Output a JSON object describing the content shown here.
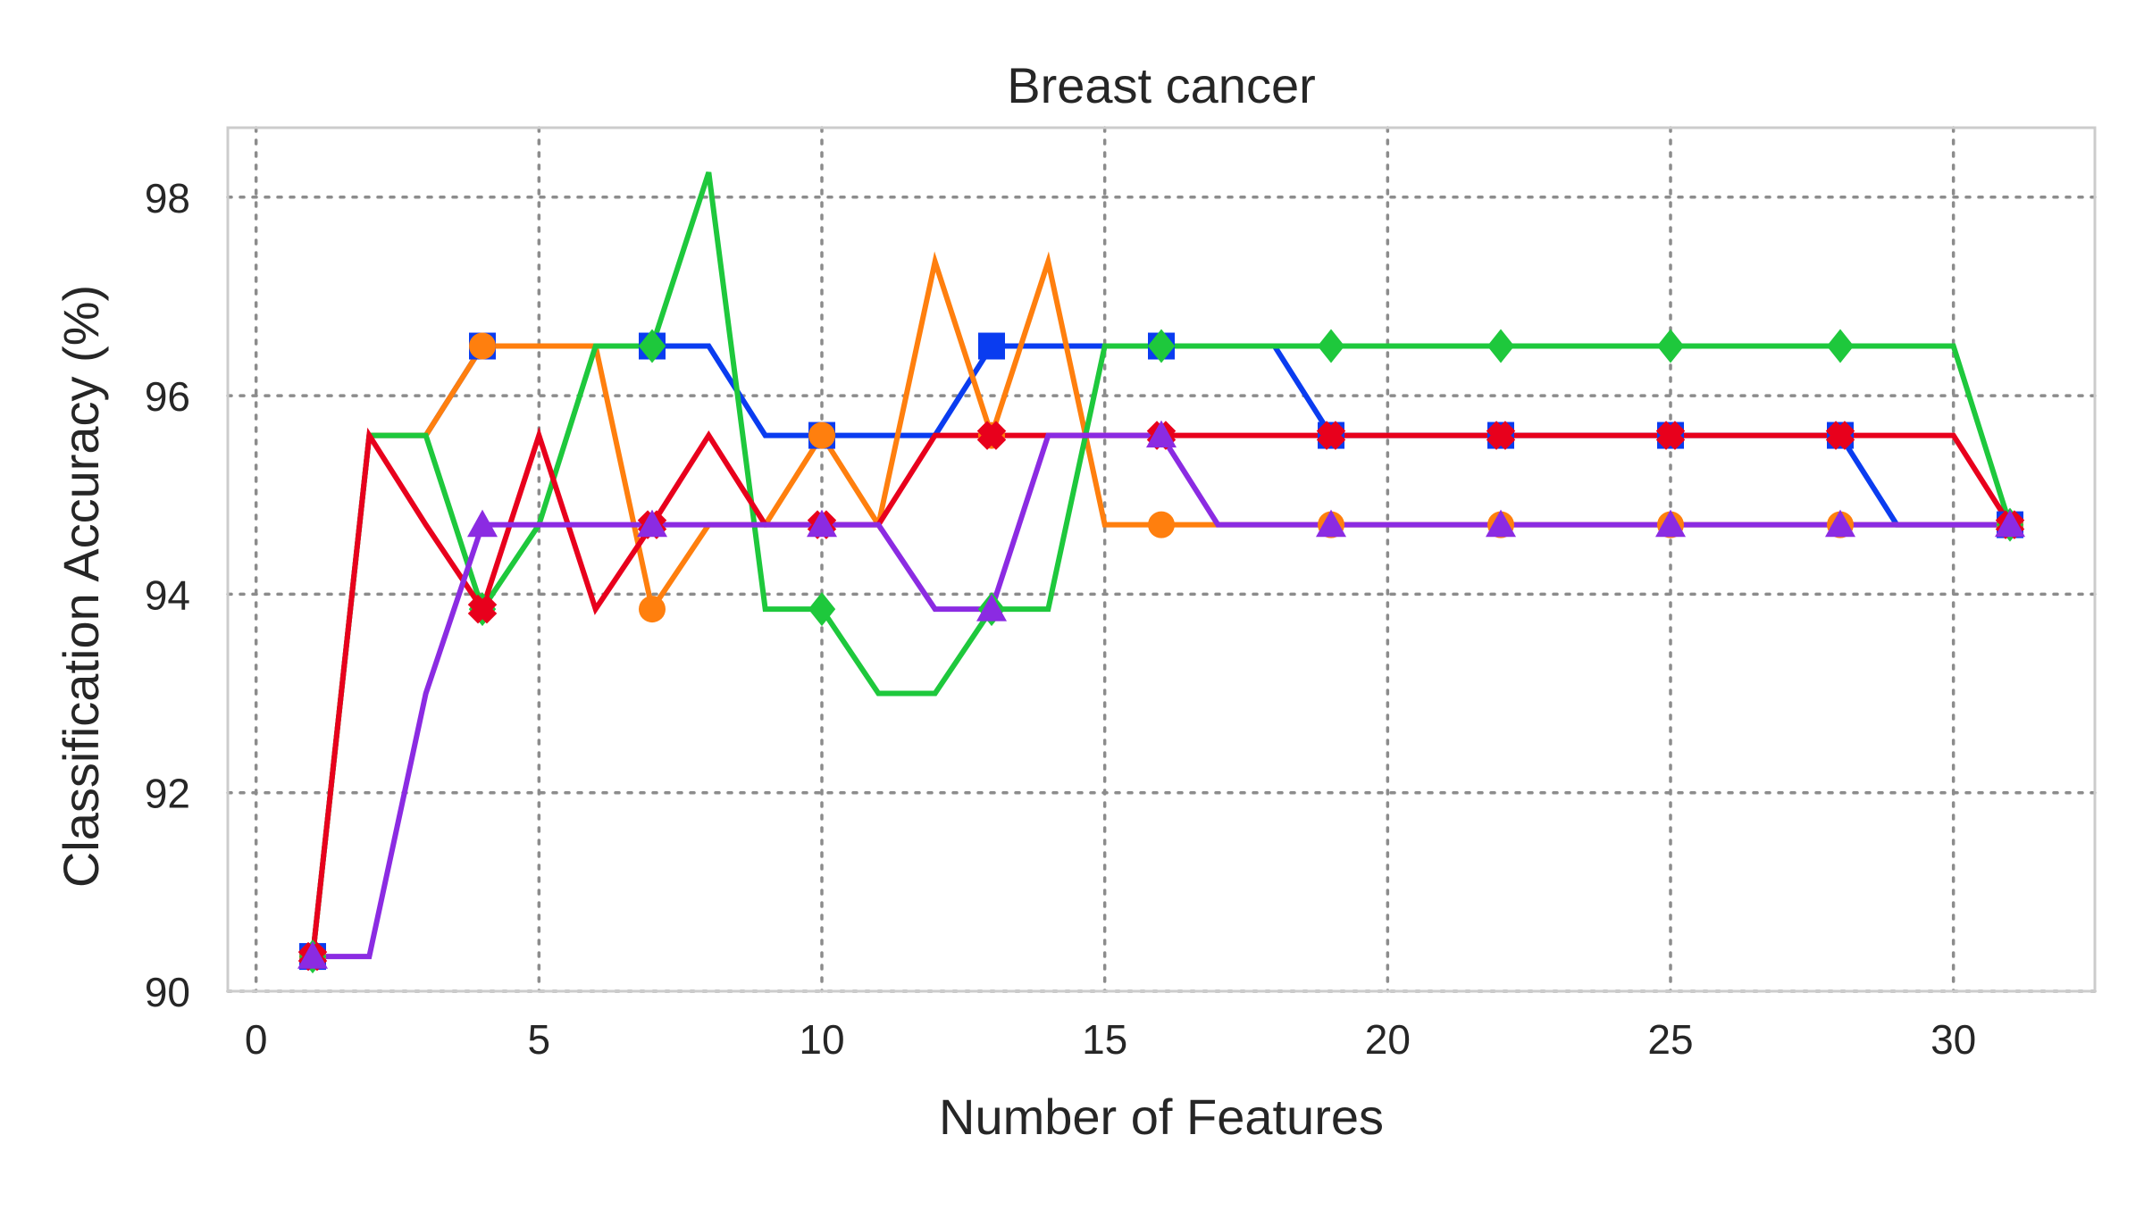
{
  "chart_data": {
    "type": "line",
    "title": "Breast cancer",
    "xlabel": "Number of Features",
    "ylabel": "Classification Accuracy (%)",
    "xlim": [
      -0.5,
      32.5
    ],
    "ylim": [
      90,
      98.7
    ],
    "xticks": [
      0,
      5,
      10,
      15,
      20,
      25,
      30
    ],
    "yticks": [
      90,
      92,
      94,
      96,
      98
    ],
    "grid": true,
    "x": [
      1,
      2,
      3,
      4,
      5,
      6,
      7,
      8,
      9,
      10,
      11,
      12,
      13,
      14,
      15,
      16,
      17,
      18,
      19,
      20,
      21,
      22,
      23,
      24,
      25,
      26,
      27,
      28,
      29,
      30,
      31
    ],
    "series": [
      {
        "color": "#0a3cf0",
        "marker": "square",
        "values": [
          90.35,
          95.6,
          95.6,
          96.5,
          96.5,
          96.5,
          96.5,
          96.5,
          95.6,
          95.6,
          95.6,
          95.6,
          96.5,
          96.5,
          96.5,
          96.5,
          96.5,
          96.5,
          95.6,
          95.6,
          95.6,
          95.6,
          95.6,
          95.6,
          95.6,
          95.6,
          95.6,
          95.6,
          94.7,
          94.7,
          94.7
        ]
      },
      {
        "color": "#ff7f0e",
        "marker": "circle",
        "values": [
          90.35,
          95.6,
          95.6,
          96.5,
          96.5,
          96.5,
          93.85,
          94.7,
          94.7,
          95.6,
          94.7,
          97.35,
          95.6,
          97.35,
          94.7,
          94.7,
          94.7,
          94.7,
          94.7,
          94.7,
          94.7,
          94.7,
          94.7,
          94.7,
          94.7,
          94.7,
          94.7,
          94.7,
          94.7,
          94.7,
          94.7
        ]
      },
      {
        "color": "#1ec83c",
        "marker": "diamond",
        "values": [
          90.35,
          95.6,
          95.6,
          93.85,
          94.7,
          96.5,
          96.5,
          98.25,
          93.85,
          93.85,
          93.0,
          93.0,
          93.85,
          93.85,
          96.5,
          96.5,
          96.5,
          96.5,
          96.5,
          96.5,
          96.5,
          96.5,
          96.5,
          96.5,
          96.5,
          96.5,
          96.5,
          96.5,
          96.5,
          96.5,
          94.7
        ]
      },
      {
        "color": "#e8001c",
        "marker": "plus",
        "values": [
          90.35,
          95.6,
          94.7,
          93.85,
          95.6,
          93.85,
          94.7,
          95.6,
          94.7,
          94.7,
          94.7,
          95.6,
          95.6,
          95.6,
          95.6,
          95.6,
          95.6,
          95.6,
          95.6,
          95.6,
          95.6,
          95.6,
          95.6,
          95.6,
          95.6,
          95.6,
          95.6,
          95.6,
          95.6,
          95.6,
          94.7
        ]
      },
      {
        "color": "#8b2be2",
        "marker": "triangle",
        "values": [
          90.35,
          90.35,
          93.0,
          94.7,
          94.7,
          94.7,
          94.7,
          94.7,
          94.7,
          94.7,
          94.7,
          93.85,
          93.85,
          95.6,
          95.6,
          95.6,
          94.7,
          94.7,
          94.7,
          94.7,
          94.7,
          94.7,
          94.7,
          94.7,
          94.7,
          94.7,
          94.7,
          94.7,
          94.7,
          94.7,
          94.7
        ]
      }
    ]
  }
}
